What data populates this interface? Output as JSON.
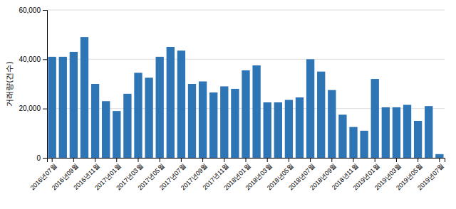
{
  "chart_data": {
    "type": "bar",
    "y_label": "거래량(건수)",
    "categories": [
      "2016년07월",
      null,
      "2016년09월",
      null,
      "2016년11월",
      null,
      "2017년01월",
      null,
      "2017년03월",
      null,
      "2017년05월",
      null,
      "2017년07월",
      null,
      "2017년09월",
      null,
      "2017년11월",
      null,
      "2018년01월",
      null,
      "2018년03월",
      null,
      "2018년05월",
      null,
      "2018년07월",
      null,
      "2018년09월",
      null,
      "2018년11월",
      null,
      "2019년01월",
      null,
      "2019년03월",
      null,
      "2019년05월",
      null,
      "2019년07월"
    ],
    "values": [
      41000,
      41000,
      43000,
      49000,
      30000,
      23000,
      19000,
      26000,
      34500,
      32500,
      41000,
      45000,
      43500,
      30000,
      31000,
      26500,
      29000,
      28000,
      35500,
      37500,
      22500,
      22500,
      23500,
      24500,
      40000,
      35000,
      27500,
      17500,
      12500,
      11000,
      32000,
      20500,
      20500,
      21500,
      15000,
      21000,
      1500
    ],
    "color": "#2e75b6",
    "ylim": [
      0,
      60000
    ],
    "yticks": [
      0,
      {
        "value": 20000,
        "label": "20,000"
      },
      {
        "value": 40000,
        "label": "40,000"
      },
      {
        "value": 60000,
        "label": "60,000"
      }
    ],
    "grid": true
  }
}
